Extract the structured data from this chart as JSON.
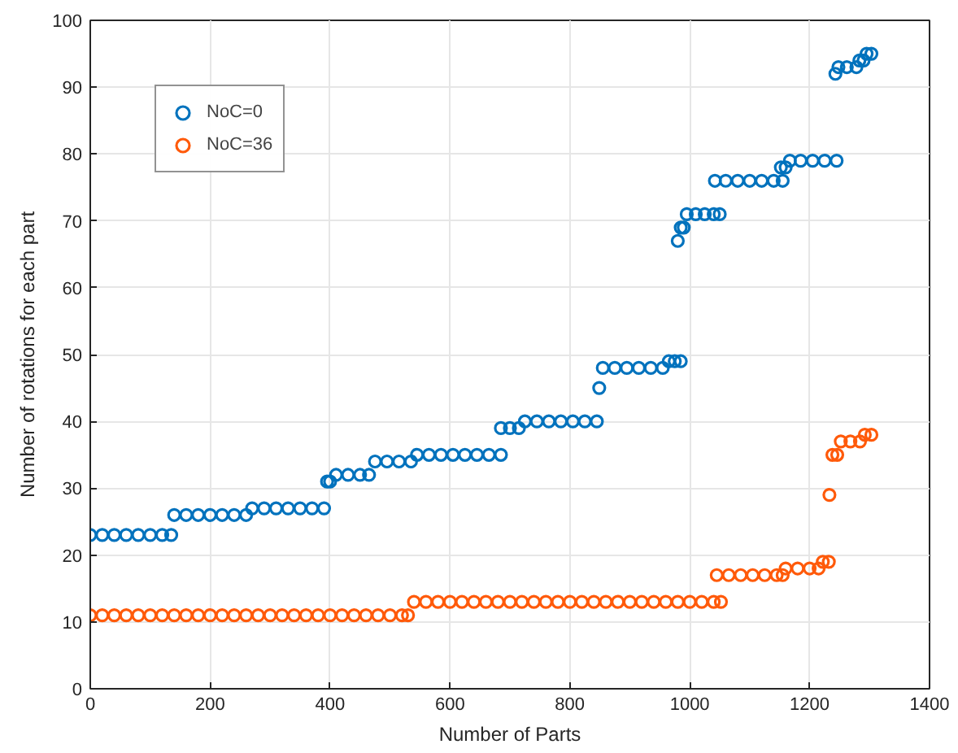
{
  "chart_data": {
    "type": "scatter",
    "xlabel": "Number of Parts",
    "ylabel": "Number of rotations for each part",
    "xlim": [
      0,
      1400
    ],
    "ylim": [
      0,
      100
    ],
    "xticks": [
      0,
      200,
      400,
      600,
      800,
      1000,
      1200,
      1400
    ],
    "yticks": [
      0,
      10,
      20,
      30,
      40,
      50,
      60,
      70,
      80,
      90,
      100
    ],
    "grid": true,
    "legend": "top left",
    "marker": "circle",
    "series": [
      {
        "name": "NoC=0",
        "color": "#0072bd",
        "x": [
          0,
          20,
          40,
          60,
          80,
          100,
          120,
          135,
          140,
          160,
          180,
          200,
          220,
          240,
          260,
          270,
          290,
          310,
          330,
          350,
          370,
          390,
          395,
          400,
          410,
          430,
          450,
          465,
          475,
          495,
          515,
          535,
          545,
          565,
          585,
          605,
          625,
          645,
          665,
          685,
          685,
          700,
          715,
          725,
          745,
          765,
          785,
          805,
          825,
          845,
          849,
          855,
          875,
          895,
          915,
          935,
          955,
          965,
          975,
          985,
          980,
          985,
          990,
          995,
          1010,
          1025,
          1040,
          1050,
          1042,
          1060,
          1080,
          1100,
          1120,
          1140,
          1155,
          1152,
          1160,
          1167,
          1185,
          1205,
          1225,
          1245,
          1243,
          1248,
          1262,
          1278,
          1283,
          1290,
          1295,
          1303
        ],
        "values": [
          23,
          23,
          23,
          23,
          23,
          23,
          23,
          23,
          26,
          26,
          26,
          26,
          26,
          26,
          26,
          27,
          27,
          27,
          27,
          27,
          27,
          27,
          31,
          31,
          32,
          32,
          32,
          32,
          34,
          34,
          34,
          34,
          35,
          35,
          35,
          35,
          35,
          35,
          35,
          35,
          39,
          39,
          39,
          40,
          40,
          40,
          40,
          40,
          40,
          40,
          45,
          48,
          48,
          48,
          48,
          48,
          48,
          49,
          49,
          49,
          67,
          69,
          69,
          71,
          71,
          71,
          71,
          71,
          76,
          76,
          76,
          76,
          76,
          76,
          76,
          78,
          78,
          79,
          79,
          79,
          79,
          79,
          92,
          93,
          93,
          93,
          94,
          94,
          95,
          95
        ]
      },
      {
        "name": "NoC=36",
        "color": "#ff5a0a",
        "x": [
          0,
          20,
          40,
          60,
          80,
          100,
          120,
          140,
          160,
          180,
          200,
          220,
          240,
          260,
          280,
          300,
          320,
          340,
          360,
          380,
          400,
          420,
          440,
          460,
          480,
          500,
          520,
          530,
          540,
          560,
          580,
          600,
          620,
          640,
          660,
          680,
          700,
          720,
          740,
          760,
          780,
          800,
          820,
          840,
          860,
          880,
          900,
          920,
          940,
          960,
          980,
          1000,
          1020,
          1040,
          1052,
          1045,
          1065,
          1085,
          1105,
          1125,
          1145,
          1155,
          1160,
          1180,
          1200,
          1215,
          1222,
          1232,
          1233,
          1238,
          1246,
          1252,
          1268,
          1284,
          1292,
          1303
        ],
        "values": [
          11,
          11,
          11,
          11,
          11,
          11,
          11,
          11,
          11,
          11,
          11,
          11,
          11,
          11,
          11,
          11,
          11,
          11,
          11,
          11,
          11,
          11,
          11,
          11,
          11,
          11,
          11,
          11,
          13,
          13,
          13,
          13,
          13,
          13,
          13,
          13,
          13,
          13,
          13,
          13,
          13,
          13,
          13,
          13,
          13,
          13,
          13,
          13,
          13,
          13,
          13,
          13,
          13,
          13,
          13,
          17,
          17,
          17,
          17,
          17,
          17,
          17,
          18,
          18,
          18,
          18,
          19,
          19,
          29,
          35,
          35,
          37,
          37,
          37,
          38,
          38
        ]
      }
    ]
  }
}
